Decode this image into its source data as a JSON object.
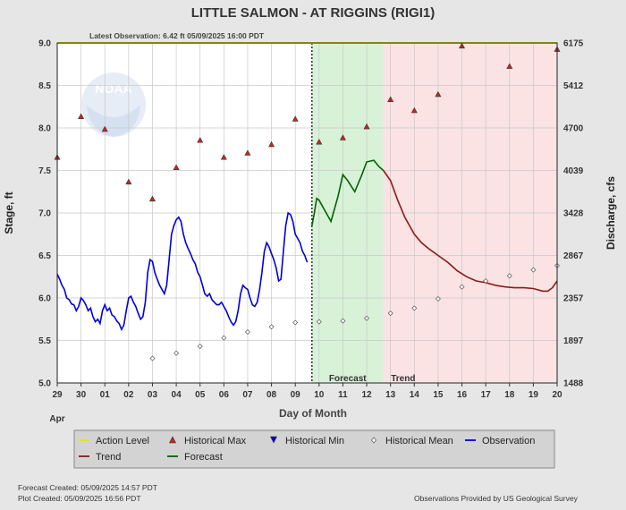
{
  "chart_data": {
    "type": "line",
    "title": "LITTLE SALMON - AT RIGGINS  (RIGI1)",
    "subtitle": "Latest Observation: 6.42 ft 05/09/2025 16:00 PDT",
    "xlabel": "Day of Month",
    "month_label": "Apr",
    "ylabel_left": "Stage, ft",
    "ylabel_right": "Discharge, cfs",
    "ylim": [
      5.0,
      9.0
    ],
    "y_ticks": [
      "5.0",
      "5.5",
      "6.0",
      "6.5",
      "7.0",
      "7.5",
      "8.0",
      "8.5",
      "9.0"
    ],
    "y_right_ticks": [
      {
        "stage": 5.0,
        "label": "1488"
      },
      {
        "stage": 5.5,
        "label": "1897"
      },
      {
        "stage": 6.0,
        "label": "2357"
      },
      {
        "stage": 6.5,
        "label": "2867"
      },
      {
        "stage": 7.0,
        "label": "3428"
      },
      {
        "stage": 7.5,
        "label": "4039"
      },
      {
        "stage": 8.0,
        "label": "4700"
      },
      {
        "stage": 8.5,
        "label": "5412"
      },
      {
        "stage": 9.0,
        "label": "6175"
      }
    ],
    "xlim": [
      0,
      21
    ],
    "x_tick_labels": [
      "29",
      "30",
      "01",
      "02",
      "03",
      "04",
      "05",
      "06",
      "07",
      "08",
      "09",
      "10",
      "11",
      "12",
      "13",
      "14",
      "15",
      "16",
      "17",
      "18",
      "19",
      "20"
    ],
    "action_level": 9.0,
    "forecast_start": 10.7,
    "trend_start": 13.7,
    "forecast_region_label": "Forecast",
    "trend_region_label": "Trend",
    "colors": {
      "observation": "#0000dd",
      "forecast": "#006400",
      "trend": "#8b1a1a",
      "action": "#e6e600",
      "max_marker": "#cc2222",
      "forecast_bg": "#d8f2d8",
      "trend_bg": "#fbe3e3"
    },
    "series": [
      {
        "name": "Observation",
        "points": [
          [
            0,
            6.28
          ],
          [
            0.1,
            6.22
          ],
          [
            0.2,
            6.15
          ],
          [
            0.3,
            6.1
          ],
          [
            0.4,
            6.0
          ],
          [
            0.5,
            5.98
          ],
          [
            0.6,
            5.93
          ],
          [
            0.7,
            5.92
          ],
          [
            0.8,
            5.85
          ],
          [
            0.9,
            5.9
          ],
          [
            1.0,
            6.0
          ],
          [
            1.1,
            5.97
          ],
          [
            1.2,
            5.92
          ],
          [
            1.3,
            5.85
          ],
          [
            1.4,
            5.88
          ],
          [
            1.5,
            5.78
          ],
          [
            1.6,
            5.72
          ],
          [
            1.7,
            5.75
          ],
          [
            1.8,
            5.7
          ],
          [
            1.9,
            5.85
          ],
          [
            2.0,
            5.92
          ],
          [
            2.1,
            5.85
          ],
          [
            2.2,
            5.88
          ],
          [
            2.3,
            5.8
          ],
          [
            2.4,
            5.78
          ],
          [
            2.5,
            5.73
          ],
          [
            2.6,
            5.7
          ],
          [
            2.7,
            5.63
          ],
          [
            2.8,
            5.68
          ],
          [
            2.9,
            5.85
          ],
          [
            3.0,
            6.0
          ],
          [
            3.1,
            6.02
          ],
          [
            3.2,
            5.95
          ],
          [
            3.3,
            5.9
          ],
          [
            3.4,
            5.82
          ],
          [
            3.5,
            5.75
          ],
          [
            3.6,
            5.78
          ],
          [
            3.7,
            5.95
          ],
          [
            3.8,
            6.3
          ],
          [
            3.9,
            6.45
          ],
          [
            4.0,
            6.43
          ],
          [
            4.1,
            6.3
          ],
          [
            4.2,
            6.22
          ],
          [
            4.3,
            6.15
          ],
          [
            4.4,
            6.1
          ],
          [
            4.5,
            6.05
          ],
          [
            4.6,
            6.15
          ],
          [
            4.7,
            6.45
          ],
          [
            4.8,
            6.75
          ],
          [
            4.9,
            6.85
          ],
          [
            5.0,
            6.92
          ],
          [
            5.1,
            6.95
          ],
          [
            5.2,
            6.9
          ],
          [
            5.3,
            6.75
          ],
          [
            5.4,
            6.65
          ],
          [
            5.5,
            6.58
          ],
          [
            5.6,
            6.52
          ],
          [
            5.7,
            6.45
          ],
          [
            5.8,
            6.4
          ],
          [
            5.9,
            6.3
          ],
          [
            6.0,
            6.25
          ],
          [
            6.1,
            6.15
          ],
          [
            6.2,
            6.05
          ],
          [
            6.3,
            6.02
          ],
          [
            6.4,
            6.05
          ],
          [
            6.5,
            5.98
          ],
          [
            6.6,
            5.95
          ],
          [
            6.7,
            5.92
          ],
          [
            6.8,
            5.92
          ],
          [
            6.9,
            5.95
          ],
          [
            7.0,
            5.9
          ],
          [
            7.1,
            5.85
          ],
          [
            7.2,
            5.78
          ],
          [
            7.3,
            5.72
          ],
          [
            7.4,
            5.68
          ],
          [
            7.5,
            5.72
          ],
          [
            7.6,
            5.85
          ],
          [
            7.7,
            6.05
          ],
          [
            7.8,
            6.15
          ],
          [
            7.9,
            6.12
          ],
          [
            8.0,
            6.1
          ],
          [
            8.1,
            6.0
          ],
          [
            8.2,
            5.92
          ],
          [
            8.3,
            5.9
          ],
          [
            8.4,
            5.95
          ],
          [
            8.5,
            6.1
          ],
          [
            8.6,
            6.3
          ],
          [
            8.7,
            6.55
          ],
          [
            8.8,
            6.65
          ],
          [
            8.9,
            6.6
          ],
          [
            9.0,
            6.52
          ],
          [
            9.1,
            6.45
          ],
          [
            9.2,
            6.35
          ],
          [
            9.3,
            6.2
          ],
          [
            9.4,
            6.22
          ],
          [
            9.5,
            6.55
          ],
          [
            9.6,
            6.85
          ],
          [
            9.7,
            7.0
          ],
          [
            9.8,
            6.98
          ],
          [
            9.9,
            6.9
          ],
          [
            10.0,
            6.75
          ],
          [
            10.1,
            6.7
          ],
          [
            10.2,
            6.65
          ],
          [
            10.3,
            6.55
          ],
          [
            10.4,
            6.5
          ],
          [
            10.5,
            6.42
          ]
        ]
      },
      {
        "name": "Forecast",
        "points": [
          [
            10.7,
            6.85
          ],
          [
            10.8,
            7.0
          ],
          [
            10.9,
            7.17
          ],
          [
            11.0,
            7.15
          ],
          [
            11.2,
            7.05
          ],
          [
            11.5,
            6.9
          ],
          [
            11.8,
            7.2
          ],
          [
            12.0,
            7.45
          ],
          [
            12.2,
            7.38
          ],
          [
            12.5,
            7.25
          ],
          [
            12.8,
            7.45
          ],
          [
            13.0,
            7.6
          ],
          [
            13.3,
            7.62
          ],
          [
            13.5,
            7.55
          ],
          [
            13.7,
            7.5
          ]
        ]
      },
      {
        "name": "Trend",
        "points": [
          [
            13.7,
            7.5
          ],
          [
            14.0,
            7.38
          ],
          [
            14.3,
            7.15
          ],
          [
            14.6,
            6.95
          ],
          [
            15.0,
            6.75
          ],
          [
            15.3,
            6.65
          ],
          [
            15.6,
            6.58
          ],
          [
            16.0,
            6.5
          ],
          [
            16.4,
            6.42
          ],
          [
            16.8,
            6.32
          ],
          [
            17.2,
            6.25
          ],
          [
            17.6,
            6.2
          ],
          [
            18.0,
            6.18
          ],
          [
            18.4,
            6.15
          ],
          [
            18.8,
            6.13
          ],
          [
            19.2,
            6.12
          ],
          [
            19.6,
            6.12
          ],
          [
            20.0,
            6.11
          ],
          [
            20.4,
            6.08
          ],
          [
            20.6,
            6.08
          ],
          [
            20.8,
            6.12
          ],
          [
            21.0,
            6.2
          ]
        ]
      },
      {
        "name": "Historical Max",
        "points": [
          [
            0,
            7.65
          ],
          [
            1,
            8.13
          ],
          [
            2,
            7.98
          ],
          [
            3,
            7.36
          ],
          [
            4,
            7.16
          ],
          [
            5,
            7.53
          ],
          [
            6,
            7.85
          ],
          [
            7,
            7.65
          ],
          [
            8,
            7.7
          ],
          [
            9,
            7.8
          ],
          [
            10,
            8.1
          ],
          [
            11,
            7.83
          ],
          [
            12,
            7.88
          ],
          [
            13,
            8.01
          ],
          [
            14,
            8.33
          ],
          [
            15,
            8.2
          ],
          [
            16,
            8.39
          ],
          [
            17,
            8.96
          ],
          [
            19,
            8.72
          ],
          [
            21,
            8.92
          ]
        ]
      },
      {
        "name": "Historical Mean",
        "points": [
          [
            4,
            5.29
          ],
          [
            5,
            5.35
          ],
          [
            6,
            5.43
          ],
          [
            7,
            5.53
          ],
          [
            8,
            5.6
          ],
          [
            9,
            5.66
          ],
          [
            10,
            5.71
          ],
          [
            11,
            5.72
          ],
          [
            12,
            5.73
          ],
          [
            13,
            5.76
          ],
          [
            14,
            5.82
          ],
          [
            15,
            5.88
          ],
          [
            16,
            5.99
          ],
          [
            17,
            6.13
          ],
          [
            18,
            6.2
          ],
          [
            19,
            6.26
          ],
          [
            20,
            6.33
          ],
          [
            21,
            6.38
          ]
        ]
      }
    ],
    "legend": [
      {
        "label": "Action Level",
        "symbol": "line",
        "color": "#e6e600"
      },
      {
        "label": "Historical Max",
        "symbol": "triangle-up",
        "color": "#cc2222"
      },
      {
        "label": "Historical Min",
        "symbol": "triangle-down",
        "color": "#0000cc"
      },
      {
        "label": "Historical Mean",
        "symbol": "diamond",
        "color": "#ffffff"
      },
      {
        "label": "Observation",
        "symbol": "line",
        "color": "#0000dd"
      },
      {
        "label": "Trend",
        "symbol": "line",
        "color": "#8b1a1a"
      },
      {
        "label": "Forecast",
        "symbol": "line",
        "color": "#006400"
      }
    ]
  },
  "footer": {
    "forecast_created": "Forecast Created: 05/09/2025 14:57 PDT",
    "plot_created": "Plot Created: 05/09/2025 16:56 PDT",
    "credit": "Observations Provided by US Geological Survey"
  },
  "watermark": "NOAA"
}
